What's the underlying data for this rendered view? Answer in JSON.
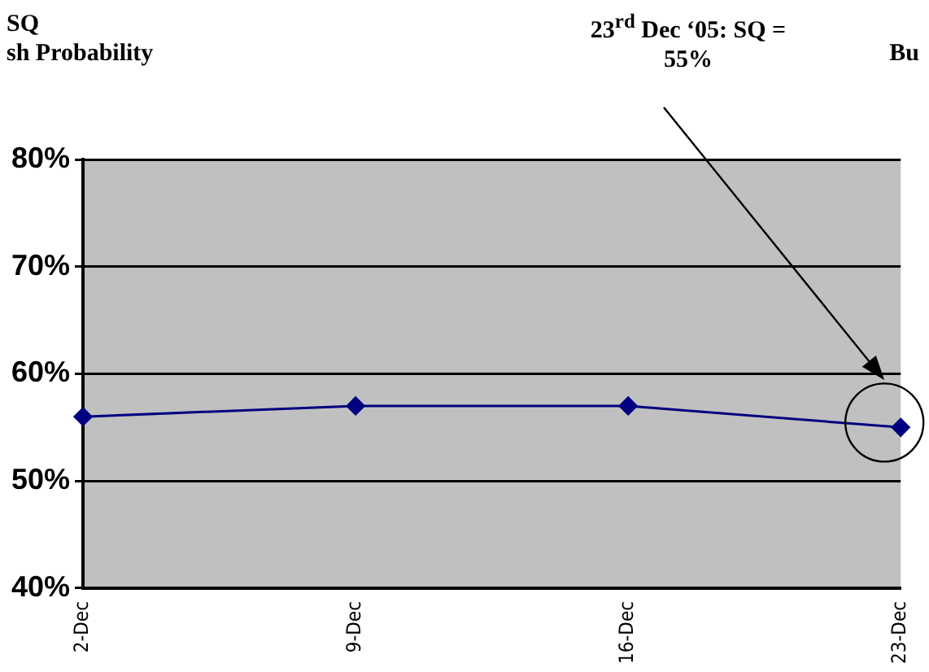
{
  "chart_data": {
    "type": "line",
    "title": "SQ",
    "subtitle": "sh Probability",
    "annotations": [
      "23$^{rd}$ Dec ‘05: SQ = 55%",
      "Bu"
    ],
    "categories": [
      "2-Dec",
      "9-Dec",
      "16-Dec",
      "23-Dec"
    ],
    "series": [
      {
        "color": "#000080",
        "values": [
          56,
          57,
          57,
          55
        ]
      }
    ],
    "ylim": [
      40,
      80
    ],
    "yticks": [
      {
        "value": 40,
        "label": "40%"
      },
      {
        "value": 50,
        "label": "50%"
      },
      {
        "value": 60,
        "label": "60%"
      },
      {
        "value": 70,
        "label": "70%"
      },
      {
        "value": 80,
        "label": "80%"
      }
    ],
    "grid": "y",
    "legend": false,
    "marker": "diamond",
    "line_style": "solid"
  }
}
